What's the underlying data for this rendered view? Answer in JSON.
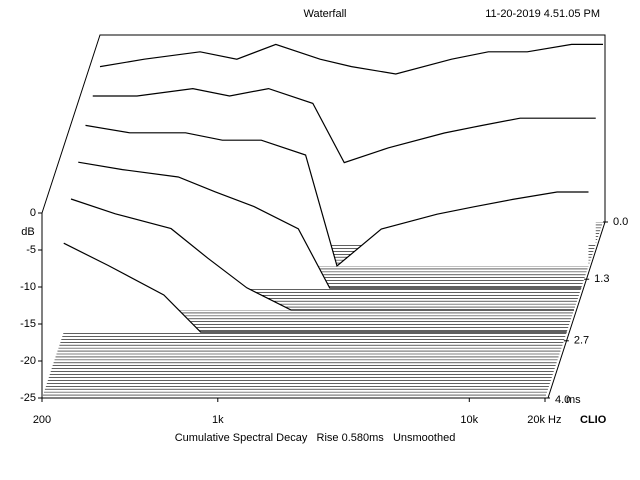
{
  "chart_data": {
    "type": "waterfall",
    "title": "Waterfall",
    "timestamp": "11-20-2019 4.51.05 PM",
    "ylabel": "dB",
    "x_unit": "Hz",
    "t_unit": "ms",
    "brand": "CLIO",
    "footer": "Cumulative Spectral Decay   Rise 0.580ms   Unsmoothed",
    "log_x": true,
    "xlim": [
      200,
      20000
    ],
    "xticks": [
      200,
      {
        "value": 1000,
        "label": "1k"
      },
      {
        "value": 10000,
        "label": "10k"
      },
      {
        "value": 20000,
        "label": "20k"
      }
    ],
    "ylim": [
      -25,
      0
    ],
    "yticks": [
      0,
      -5,
      -10,
      -15,
      -20,
      -25
    ],
    "tlim": [
      0,
      4
    ],
    "tticks": [
      {
        "value": 0,
        "label": "0.0"
      },
      1.3,
      2.7,
      {
        "value": 4,
        "label": "4.0"
      }
    ],
    "x": [
      200,
      300,
      500,
      700,
      1000,
      1500,
      2000,
      3000,
      5000,
      7000,
      10000,
      15000,
      20000
    ],
    "slices": [
      {
        "time": 0,
        "values": [
          -4,
          -3,
          -2,
          -3,
          -1,
          -3,
          -4,
          -5,
          -3,
          -2,
          -2,
          -1,
          -1
        ]
      },
      {
        "time": 0.5,
        "values": [
          -5,
          -5,
          -4,
          -5,
          -4,
          -6,
          -14,
          -12,
          -10,
          -9,
          -8,
          -8,
          -8
        ]
      },
      {
        "time": 1.0,
        "values": [
          -6,
          -7,
          -7,
          -8,
          -8,
          -10,
          -25,
          -20,
          -18,
          -17,
          -16,
          -15,
          -15
        ]
      },
      {
        "time": 1.5,
        "values": [
          -8,
          -9,
          -10,
          -12,
          -14,
          -17,
          -25,
          -25,
          -25,
          -25,
          -25,
          -25,
          -25
        ]
      },
      {
        "time": 2.0,
        "values": [
          -10,
          -12,
          -14,
          -18,
          -22,
          -25,
          -25,
          -25,
          -25,
          -25,
          -25,
          -25,
          -25
        ]
      },
      {
        "time": 2.5,
        "values": [
          -13,
          -16,
          -20,
          -25,
          -25,
          -25,
          -25,
          -25,
          -25,
          -25,
          -25,
          -25,
          -25
        ]
      }
    ]
  }
}
